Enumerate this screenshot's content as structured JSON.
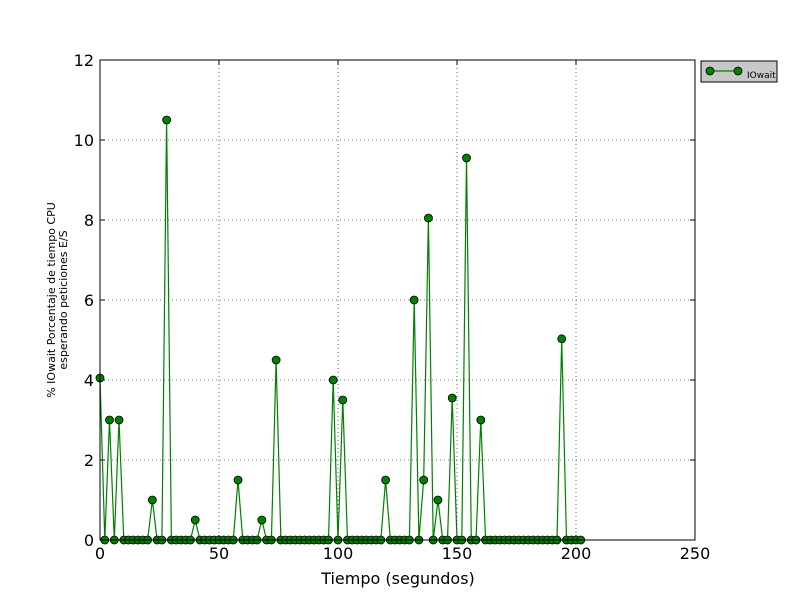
{
  "chart_data": {
    "type": "line",
    "title": "",
    "xlabel": "Tiempo (segundos)",
    "ylabel_lines": [
      "% IOwait Porcentaje de tiempo CPU",
      "esperando peticiones E/S"
    ],
    "xlim": [
      0,
      250
    ],
    "ylim": [
      0,
      12
    ],
    "xticks": [
      0,
      50,
      100,
      150,
      200,
      250
    ],
    "yticks": [
      0,
      2,
      4,
      6,
      8,
      10,
      12
    ],
    "grid": true,
    "legend_position": "outside-top-right",
    "series": [
      {
        "name": "IOwait",
        "color": "#008000",
        "marker": "circle",
        "x": [
          0,
          2,
          4,
          6,
          8,
          10,
          12,
          14,
          16,
          18,
          20,
          22,
          24,
          26,
          28,
          30,
          32,
          34,
          36,
          38,
          40,
          42,
          44,
          46,
          48,
          50,
          52,
          54,
          56,
          58,
          60,
          62,
          64,
          66,
          68,
          70,
          72,
          74,
          76,
          78,
          80,
          82,
          84,
          86,
          88,
          90,
          92,
          94,
          96,
          98,
          100,
          102,
          104,
          106,
          108,
          110,
          112,
          114,
          116,
          118,
          120,
          122,
          124,
          126,
          128,
          130,
          132,
          134,
          136,
          138,
          140,
          142,
          144,
          146,
          148,
          150,
          152,
          154,
          156,
          158,
          160,
          162,
          164,
          166,
          168,
          170,
          172,
          174,
          176,
          178,
          180,
          182,
          184,
          186,
          188,
          190,
          192,
          194,
          196,
          198,
          200,
          202
        ],
        "y": [
          4.05,
          0,
          3.0,
          0,
          3.0,
          0,
          0,
          0,
          0,
          0,
          0,
          1.0,
          0,
          0,
          10.5,
          0,
          0,
          0,
          0,
          0,
          0.5,
          0,
          0,
          0,
          0,
          0,
          0,
          0,
          0,
          1.5,
          0,
          0,
          0,
          0,
          0.5,
          0,
          0,
          4.5,
          0,
          0,
          0,
          0,
          0,
          0,
          0,
          0,
          0,
          0,
          0,
          4.0,
          0,
          3.5,
          0,
          0,
          0,
          0,
          0,
          0,
          0,
          0,
          1.5,
          0,
          0,
          0,
          0,
          0,
          6.0,
          0,
          1.5,
          8.05,
          0,
          1.0,
          0,
          0,
          3.55,
          0,
          0,
          9.55,
          0,
          0,
          3.0,
          0,
          0,
          0,
          0,
          0,
          0,
          0,
          0,
          0,
          0,
          0,
          0,
          0,
          0,
          0,
          0,
          5.03,
          0,
          0,
          0,
          0
        ]
      }
    ]
  }
}
